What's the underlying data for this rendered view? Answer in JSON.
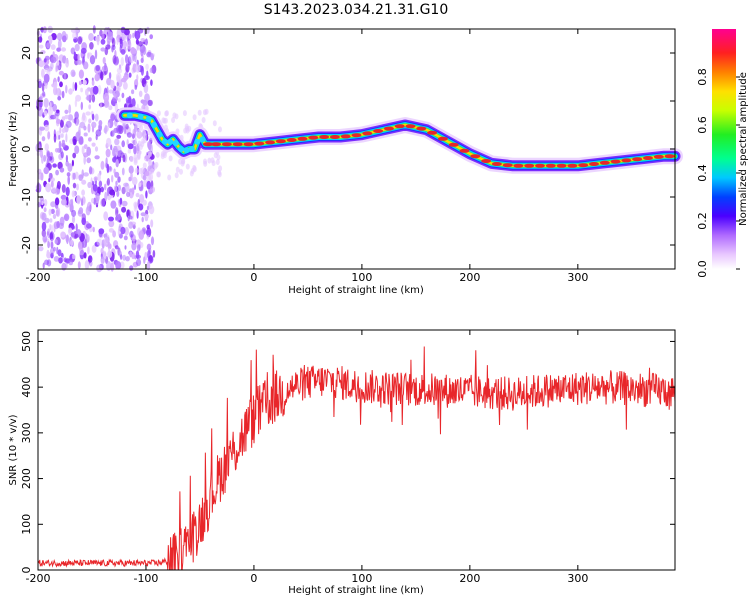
{
  "title": "S143.2023.034.21.31.G10",
  "chart_data": [
    {
      "type": "heatmap",
      "xlabel": "Height of straight line (km)",
      "ylabel": "Frequency (Hz)",
      "xlim": [
        -200,
        390
      ],
      "ylim": [
        -25,
        25
      ],
      "xticks": [
        -200,
        -100,
        0,
        100,
        200,
        300
      ],
      "yticks": [
        -20,
        -10,
        0,
        10,
        20
      ],
      "colorbar": {
        "label": "Normalized spectral amplitude",
        "range": [
          0,
          1
        ],
        "ticks": [
          0.0,
          0.2,
          0.4,
          0.6,
          0.8
        ]
      },
      "noise_region_x": [
        -200,
        -100
      ],
      "ridge": {
        "x": [
          -120,
          -110,
          -100,
          -95,
          -90,
          -85,
          -80,
          -75,
          -70,
          -65,
          -60,
          -55,
          -50,
          -45,
          -40,
          -30,
          -20,
          0,
          20,
          40,
          60,
          80,
          100,
          120,
          140,
          160,
          180,
          200,
          220,
          240,
          260,
          280,
          300,
          320,
          340,
          360,
          380,
          390
        ],
        "y": [
          7,
          7,
          6.5,
          6,
          4,
          2,
          1,
          2,
          0.5,
          -0.5,
          0,
          0,
          3,
          1,
          1,
          1,
          1,
          1,
          1.5,
          2,
          2.5,
          2.5,
          3,
          4,
          5,
          4,
          1.5,
          -1,
          -3,
          -3.5,
          -3.5,
          -3.5,
          -3.5,
          -3,
          -2.5,
          -2,
          -1.5,
          -1.5
        ]
      }
    },
    {
      "type": "line",
      "xlabel": "Height of straight line (km)",
      "ylabel": "SNR (10 * v/v)",
      "xlim": [
        -200,
        390
      ],
      "ylim": [
        0,
        525
      ],
      "xticks": [
        -200,
        -100,
        0,
        100,
        200,
        300
      ],
      "yticks": [
        0,
        100,
        200,
        300,
        400,
        500
      ],
      "color": "#e8262a",
      "envelope": {
        "x": [
          -200,
          -120,
          -90,
          -75,
          -65,
          -55,
          -45,
          -35,
          -25,
          -15,
          -5,
          5,
          15,
          25,
          35,
          50,
          70,
          90,
          110,
          150,
          200,
          240,
          280,
          320,
          360,
          390
        ],
        "y": [
          15,
          15,
          15,
          22,
          45,
          80,
          130,
          190,
          235,
          275,
          315,
          345,
          370,
          385,
          400,
          410,
          415,
          405,
          400,
          395,
          390,
          385,
          395,
          400,
          395,
          390
        ]
      }
    }
  ]
}
